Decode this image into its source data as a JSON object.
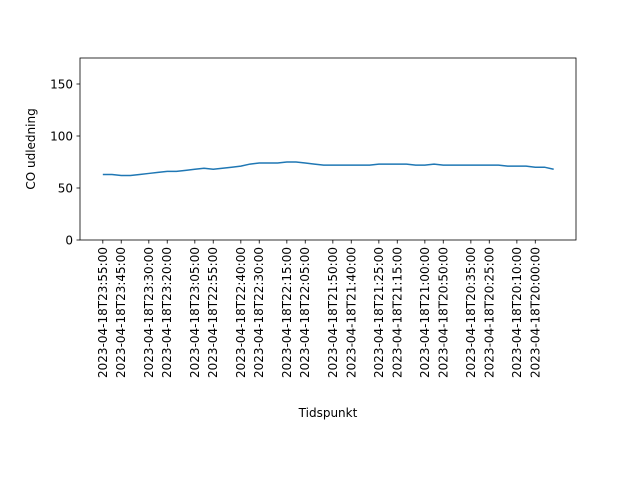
{
  "chart_data": {
    "type": "line",
    "title": "",
    "xlabel": "Tidspunkt",
    "ylabel": "CO udledning",
    "ylim": [
      0,
      175
    ],
    "yticks": [
      0,
      50,
      100,
      150
    ],
    "grid": false,
    "legend": "none",
    "line_color": "#1f77b4",
    "x": [
      "2023-04-18T23:55:00",
      "2023-04-18T23:50:00",
      "2023-04-18T23:45:00",
      "2023-04-18T23:40:00",
      "2023-04-18T23:35:00",
      "2023-04-18T23:30:00",
      "2023-04-18T23:25:00",
      "2023-04-18T23:20:00",
      "2023-04-18T23:15:00",
      "2023-04-18T23:10:00",
      "2023-04-18T23:05:00",
      "2023-04-18T23:00:00",
      "2023-04-18T22:55:00",
      "2023-04-18T22:50:00",
      "2023-04-18T22:45:00",
      "2023-04-18T22:40:00",
      "2023-04-18T22:35:00",
      "2023-04-18T22:30:00",
      "2023-04-18T22:25:00",
      "2023-04-18T22:20:00",
      "2023-04-18T22:15:00",
      "2023-04-18T22:10:00",
      "2023-04-18T22:05:00",
      "2023-04-18T22:00:00",
      "2023-04-18T21:55:00",
      "2023-04-18T21:50:00",
      "2023-04-18T21:45:00",
      "2023-04-18T21:40:00",
      "2023-04-18T21:35:00",
      "2023-04-18T21:30:00",
      "2023-04-18T21:25:00",
      "2023-04-18T21:20:00",
      "2023-04-18T21:15:00",
      "2023-04-18T21:10:00",
      "2023-04-18T21:05:00",
      "2023-04-18T21:00:00",
      "2023-04-18T20:55:00",
      "2023-04-18T20:50:00",
      "2023-04-18T20:45:00",
      "2023-04-18T20:40:00",
      "2023-04-18T20:35:00",
      "2023-04-18T20:30:00",
      "2023-04-18T20:25:00",
      "2023-04-18T20:20:00",
      "2023-04-18T20:15:00",
      "2023-04-18T20:10:00",
      "2023-04-18T20:05:00",
      "2023-04-18T20:00:00",
      "2023-04-18T19:55:00",
      "2023-04-18T19:50:00"
    ],
    "values": [
      63,
      63,
      62,
      62,
      63,
      64,
      65,
      66,
      66,
      67,
      68,
      69,
      68,
      69,
      70,
      71,
      73,
      74,
      74,
      74,
      75,
      75,
      74,
      73,
      72,
      72,
      72,
      72,
      72,
      72,
      73,
      73,
      73,
      73,
      72,
      72,
      73,
      72,
      72,
      72,
      72,
      72,
      72,
      72,
      71,
      71,
      71,
      70,
      70,
      68
    ],
    "xtick_labels": [
      "2023-04-18T23:55:00",
      "2023-04-18T23:45:00",
      "2023-04-18T23:30:00",
      "2023-04-18T23:20:00",
      "2023-04-18T23:05:00",
      "2023-04-18T22:55:00",
      "2023-04-18T22:40:00",
      "2023-04-18T22:30:00",
      "2023-04-18T22:15:00",
      "2023-04-18T22:05:00",
      "2023-04-18T21:50:00",
      "2023-04-18T21:40:00",
      "2023-04-18T21:25:00",
      "2023-04-18T21:15:00",
      "2023-04-18T21:00:00",
      "2023-04-18T20:50:00",
      "2023-04-18T20:35:00",
      "2023-04-18T20:25:00",
      "2023-04-18T20:10:00",
      "2023-04-18T20:00:00"
    ]
  }
}
